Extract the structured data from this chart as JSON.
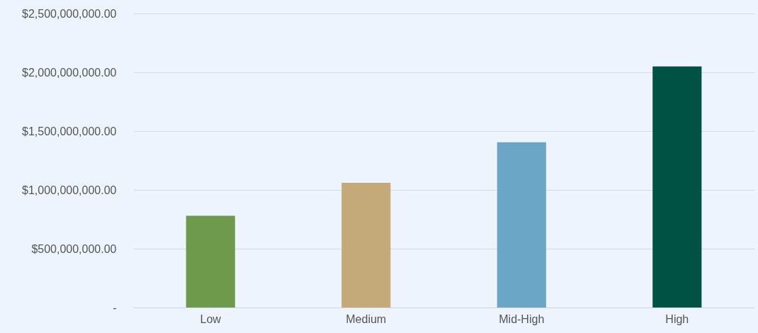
{
  "chart_data": {
    "type": "bar",
    "categories": [
      "Low",
      "Medium",
      "Mid-High",
      "High"
    ],
    "values": [
      780000000,
      1060000000,
      1405000000,
      2050000000
    ],
    "colors": [
      "#6e9a4c",
      "#c5aa79",
      "#6ba6c6",
      "#005245"
    ],
    "ylim": [
      0,
      2500000000
    ],
    "yticks": [
      {
        "value": 0,
        "label": "-"
      },
      {
        "value": 500000000,
        "label": "$500,000,000.00"
      },
      {
        "value": 1000000000,
        "label": "$1,000,000,000.00"
      },
      {
        "value": 1500000000,
        "label": "$1,500,000,000.00"
      },
      {
        "value": 2000000000,
        "label": "$2,000,000,000.00"
      },
      {
        "value": 2500000000,
        "label": "$2,500,000,000.00"
      }
    ],
    "grid": "y"
  }
}
